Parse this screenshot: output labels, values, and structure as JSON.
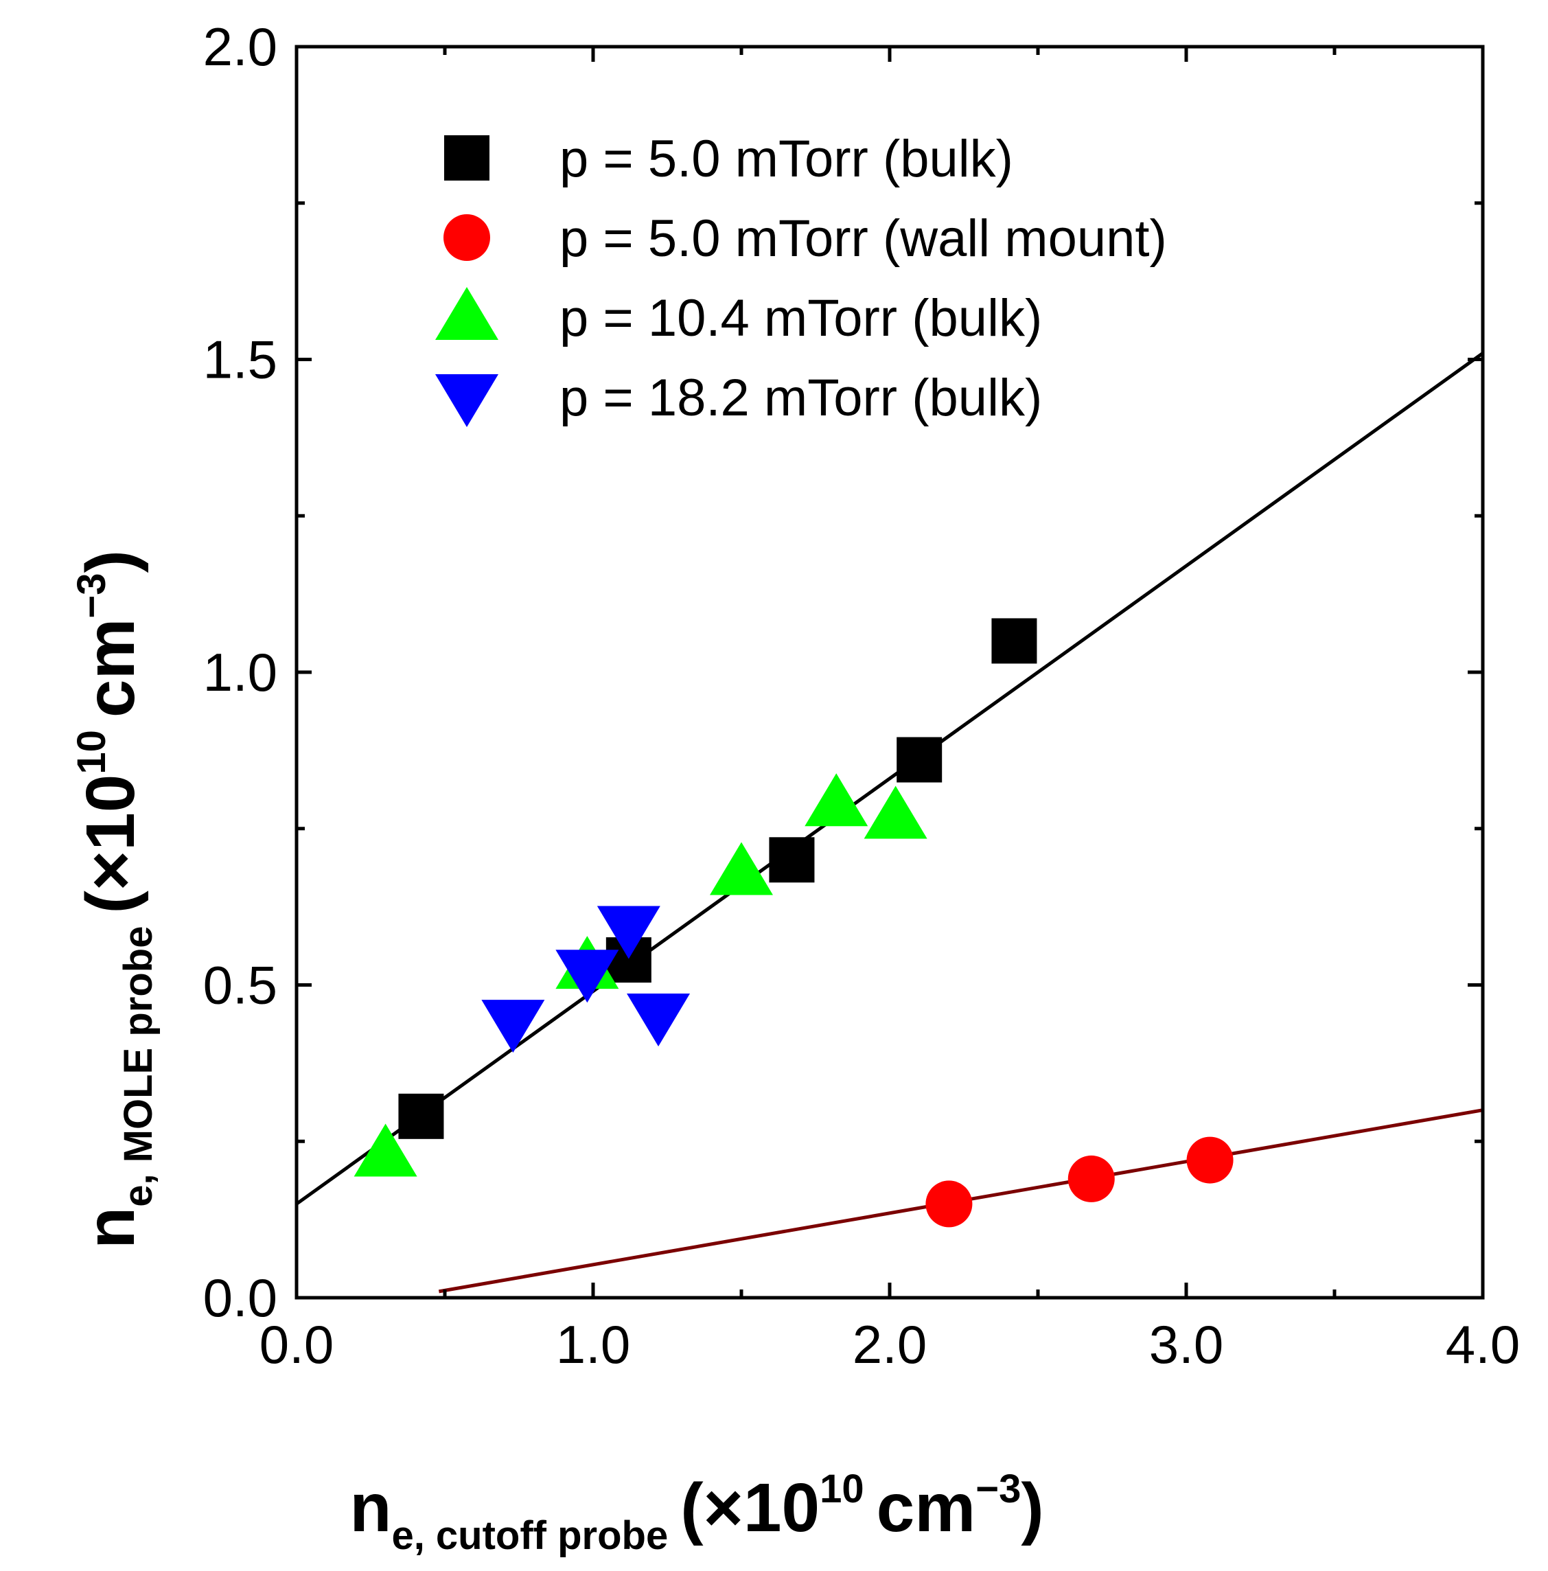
{
  "chart_data": {
    "type": "scatter",
    "title": "",
    "xlim": [
      0.0,
      4.0
    ],
    "ylim": [
      0.0,
      2.0
    ],
    "xticks": [
      "0.0",
      "1.0",
      "2.0",
      "3.0",
      "4.0"
    ],
    "yticks": [
      "0.0",
      "0.5",
      "1.0",
      "1.5",
      "2.0"
    ],
    "xlabel": {
      "main": "n",
      "sub": "e, cutoff probe",
      "unit_open": "(×10",
      "exp": "10",
      "unit_mid": "cm",
      "unit_exp": "−3",
      "unit_close": ")"
    },
    "ylabel": {
      "main": "n",
      "sub": "e, MOLE probe",
      "unit_open": "(×10",
      "exp": "10",
      "unit_mid": "cm",
      "unit_exp": "−3",
      "unit_close": ")"
    },
    "legend_position": "top-left",
    "series": [
      {
        "name": "p = 5.0 mTorr (bulk)",
        "marker": "square",
        "color": "#000000",
        "x": [
          0.42,
          1.12,
          1.67,
          2.1,
          2.42
        ],
        "y": [
          0.29,
          0.54,
          0.7,
          0.86,
          1.05
        ]
      },
      {
        "name": "p = 5.0 mTorr (wall mount)",
        "marker": "circle",
        "color": "#ff0000",
        "x": [
          2.2,
          2.68,
          3.08
        ],
        "y": [
          0.15,
          0.19,
          0.22
        ]
      },
      {
        "name": "p = 10.4 mTorr (bulk)",
        "marker": "triangle-up",
        "color": "#00ff00",
        "x": [
          0.3,
          0.98,
          1.5,
          1.82,
          2.02
        ],
        "y": [
          0.23,
          0.53,
          0.68,
          0.79,
          0.77
        ]
      },
      {
        "name": "p = 18.2 mTorr (bulk)",
        "marker": "triangle-down",
        "color": "#0000ff",
        "x": [
          0.73,
          0.98,
          1.12,
          1.22
        ],
        "y": [
          0.44,
          0.52,
          0.59,
          0.45
        ]
      }
    ],
    "fit_lines": [
      {
        "name": "fit-bulk",
        "color": "#000000",
        "x": [
          0.0,
          4.0
        ],
        "y": [
          0.15,
          1.51
        ]
      },
      {
        "name": "fit-wall-mount",
        "color": "#7b0000",
        "x": [
          0.48,
          4.0
        ],
        "y": [
          0.01,
          0.3
        ]
      }
    ]
  }
}
